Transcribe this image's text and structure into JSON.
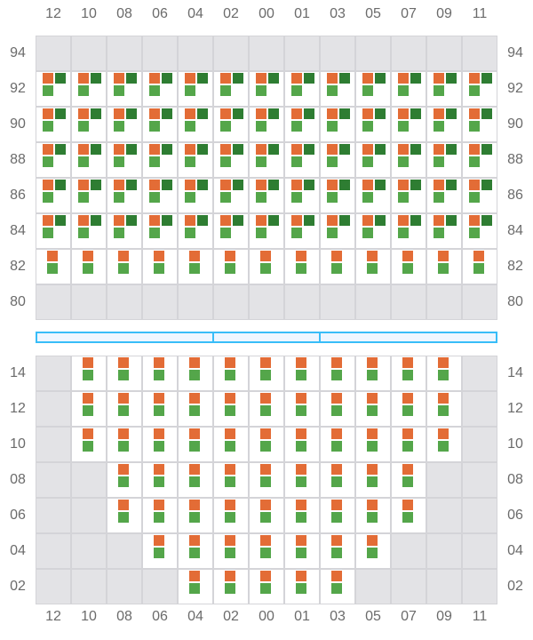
{
  "columns": [
    "12",
    "10",
    "08",
    "06",
    "04",
    "02",
    "00",
    "01",
    "03",
    "05",
    "07",
    "09",
    "11"
  ],
  "upper_section": {
    "rows": [
      {
        "label": "94",
        "cells": "ggggggggggggg"
      },
      {
        "label": "92",
        "cells": "fffffffffffff"
      },
      {
        "label": "90",
        "cells": "fffffffffffff"
      },
      {
        "label": "88",
        "cells": "fffffffffffff"
      },
      {
        "label": "86",
        "cells": "fffffffffffff"
      },
      {
        "label": "84",
        "cells": "fffffffffffff"
      },
      {
        "label": "82",
        "cells": "sssssssssssss"
      },
      {
        "label": "80",
        "cells": "ggggggggggggg"
      }
    ]
  },
  "lower_section": {
    "rows": [
      {
        "label": "14",
        "cells": "gsssssssssssg"
      },
      {
        "label": "12",
        "cells": "gsssssssssssg"
      },
      {
        "label": "10",
        "cells": "gsssssssssssg"
      },
      {
        "label": "08",
        "cells": "ggsssssssssgg"
      },
      {
        "label": "06",
        "cells": "ggsssssssssgg"
      },
      {
        "label": "04",
        "cells": "gggsssssssggg"
      },
      {
        "label": "02",
        "cells": "ggggsssssgggg"
      }
    ]
  },
  "divider_segments": 3,
  "legend_codes": {
    "g": "unavailable",
    "f": "orange + dark-green + light-green markers",
    "s": "orange + light-green markers"
  },
  "colors": {
    "orange": "#e36c36",
    "dark_green": "#2e7d32",
    "light_green": "#54a64a",
    "unavailable": "#e3e3e6",
    "divider": "#38bdf8"
  }
}
